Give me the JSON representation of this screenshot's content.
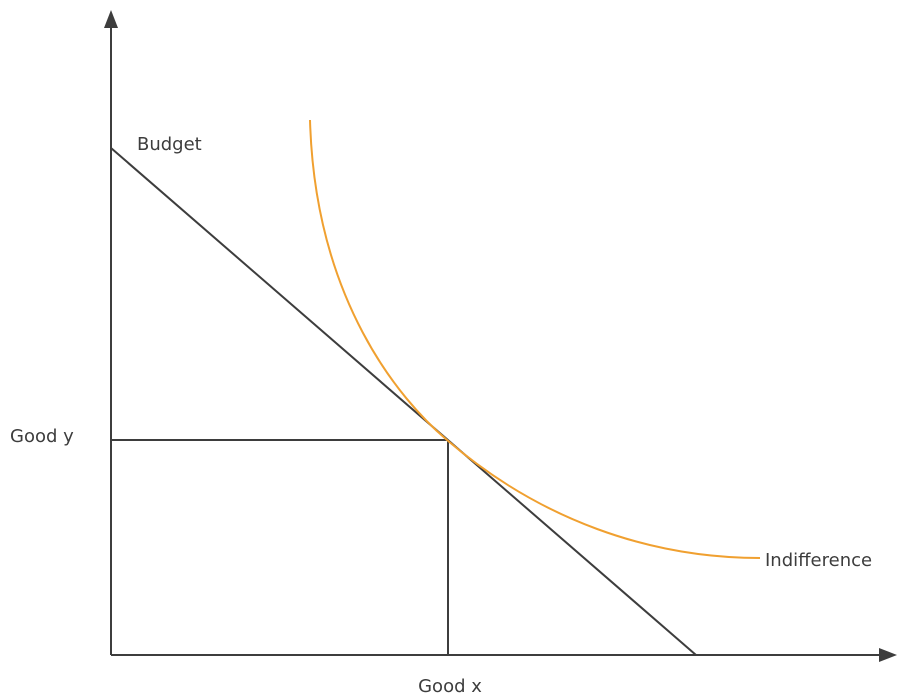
{
  "labels": {
    "budget": "Budget",
    "good_y": "Good y",
    "good_x": "Good x",
    "indifference": "Indifference"
  }
}
